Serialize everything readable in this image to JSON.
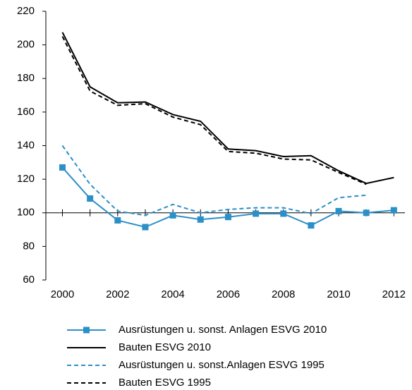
{
  "chart_data": {
    "type": "line",
    "x": [
      2000,
      2001,
      2002,
      2003,
      2004,
      2005,
      2006,
      2007,
      2008,
      2009,
      2010,
      2011,
      2012
    ],
    "series": [
      {
        "name": "Ausrüstungen u. sonst. Anlagen ESVG 2010",
        "color": "#2b8fc8",
        "dash": false,
        "marker": "square",
        "values": [
          127,
          108.5,
          95.5,
          91.5,
          98.5,
          96,
          97.5,
          99.5,
          99.5,
          92.5,
          101,
          100,
          101.5
        ]
      },
      {
        "name": "Bauten ESVG 2010",
        "color": "#000000",
        "dash": false,
        "marker": "none",
        "values": [
          207.5,
          175,
          165.5,
          166,
          158.5,
          154.5,
          138,
          137,
          133.5,
          134,
          125,
          117.5,
          121
        ]
      },
      {
        "name": "Ausrüstungen u. sonst.Anlagen ESVG 1995",
        "color": "#2b8fc8",
        "dash": true,
        "marker": "none",
        "values": [
          140,
          117,
          101,
          98.5,
          105,
          100,
          102,
          103,
          103,
          99.5,
          109,
          110.5,
          null
        ]
      },
      {
        "name": "Bauten ESVG 1995",
        "color": "#000000",
        "dash": true,
        "marker": "none",
        "values": [
          205,
          172.5,
          164,
          165,
          157,
          152.5,
          136.5,
          135.5,
          132,
          131.5,
          124,
          117,
          null
        ]
      }
    ],
    "xlim": [
      1999.4,
      2012.4
    ],
    "xticks": [
      2000,
      2002,
      2004,
      2006,
      2008,
      2010,
      2012
    ],
    "ylim": [
      60,
      220
    ],
    "yticks": [
      60,
      80,
      100,
      120,
      140,
      160,
      180,
      200,
      220
    ],
    "x_axis_at": 100,
    "grid": false,
    "legend": "bottom"
  }
}
